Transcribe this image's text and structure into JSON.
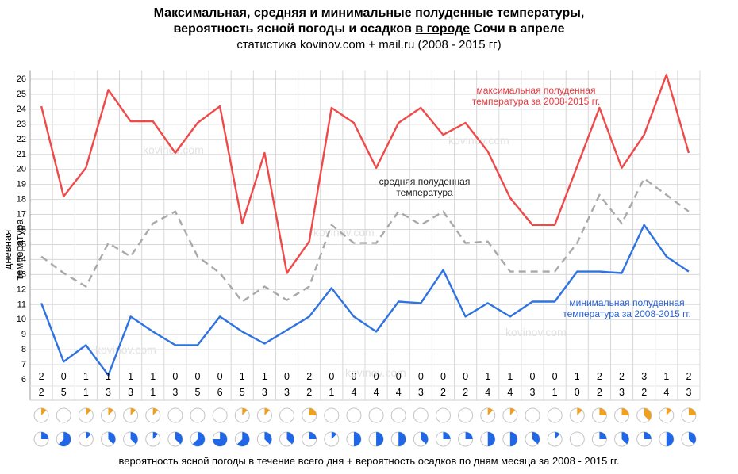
{
  "title": {
    "line1": "Максимальная, средняя и минимальные полуденные температуры,",
    "line2_prefix": "вероятность ясной погоды и осадков ",
    "line2_emph": "в городе",
    "line2_suffix": " Сочи в апреле",
    "line3": "статистика kovinov.com + mail.ru (2008 - 2015 гг)"
  },
  "watermark": "kovinov.com",
  "footer": "вероятность ясной погоды в течение всего дня + вероятность осадков по дням месяца за 2008 - 2015 гг.",
  "colors": {
    "max": "#ef4a4a",
    "avg": "#a9a9a9",
    "min": "#2f73e0",
    "sun": "#f0a020",
    "rain": "#1f67e6",
    "grid": "#d8d8d8"
  },
  "chart_data": {
    "type": "line",
    "ylabel": "дневная температура",
    "ylim": [
      6,
      26
    ],
    "yticks": [
      6,
      7,
      8,
      9,
      10,
      11,
      12,
      13,
      14,
      15,
      16,
      17,
      18,
      19,
      20,
      21,
      22,
      23,
      24,
      25,
      26
    ],
    "x": [
      1,
      2,
      3,
      4,
      5,
      6,
      7,
      8,
      9,
      10,
      11,
      12,
      13,
      14,
      15,
      16,
      17,
      18,
      19,
      20,
      21,
      22,
      23,
      24,
      25,
      26,
      27,
      28,
      29,
      30
    ],
    "series": [
      {
        "name": "максимальная полуденная температура за 2008-2015 гг.",
        "style": "solid",
        "values": [
          24.2,
          18.2,
          20.1,
          25.3,
          23.2,
          23.2,
          21.1,
          23.1,
          24.2,
          16.4,
          21.1,
          13.1,
          15.2,
          24.1,
          23.1,
          20.1,
          23.1,
          24.1,
          22.3,
          23.1,
          21.2,
          18.1,
          16.3,
          16.3,
          20.2,
          24.1,
          20.1,
          22.3,
          26.3,
          21.1
        ]
      },
      {
        "name": "средняя полуденная температура",
        "style": "dashed",
        "values": [
          14.2,
          13.1,
          12.2,
          15.1,
          14.2,
          16.4,
          17.2,
          14.2,
          13.1,
          11.2,
          12.2,
          11.3,
          12.2,
          16.3,
          15.1,
          15.1,
          17.2,
          16.3,
          17.2,
          15.1,
          15.2,
          13.2,
          13.2,
          13.2,
          15.1,
          18.3,
          16.4,
          19.4,
          18.3,
          17.2
        ]
      },
      {
        "name": "минимальная полуденная температура за 2008-2015 гг.",
        "style": "solid",
        "values": [
          11.1,
          7.2,
          8.3,
          6.3,
          10.2,
          9.2,
          8.3,
          8.3,
          10.2,
          9.2,
          8.4,
          9.3,
          10.2,
          12.1,
          10.2,
          9.2,
          11.2,
          11.1,
          13.3,
          10.2,
          11.1,
          10.2,
          11.2,
          11.2,
          13.2,
          13.2,
          13.1,
          16.3,
          14.2,
          13.2
        ]
      }
    ],
    "row_top": [
      2,
      0,
      1,
      1,
      1,
      1,
      0,
      0,
      0,
      1,
      1,
      0,
      2,
      0,
      0,
      0,
      0,
      0,
      0,
      0,
      1,
      1,
      0,
      0,
      1,
      2,
      2,
      3,
      1,
      2
    ],
    "row_bottom": [
      2,
      5,
      1,
      3,
      3,
      1,
      3,
      5,
      6,
      5,
      3,
      3,
      2,
      1,
      4,
      4,
      4,
      3,
      2,
      2,
      4,
      4,
      3,
      1,
      0,
      2,
      3,
      2,
      4,
      3
    ],
    "sun_probability": [
      0.125,
      0,
      0.125,
      0.125,
      0.125,
      0.125,
      0,
      0,
      0,
      0.125,
      0.125,
      0,
      0.25,
      0,
      0,
      0,
      0,
      0,
      0,
      0,
      0.125,
      0.125,
      0,
      0,
      0.125,
      0.25,
      0.25,
      0.375,
      0.125,
      0.25
    ],
    "rain_probability": [
      0.25,
      0.625,
      0.125,
      0.375,
      0.375,
      0.125,
      0.375,
      0.625,
      0.75,
      0.625,
      0.375,
      0.375,
      0.25,
      0.125,
      0.5,
      0.5,
      0.5,
      0.375,
      0.25,
      0.25,
      0.5,
      0.5,
      0.375,
      0.125,
      0,
      0.25,
      0.375,
      0.25,
      0.5,
      0.375
    ]
  }
}
